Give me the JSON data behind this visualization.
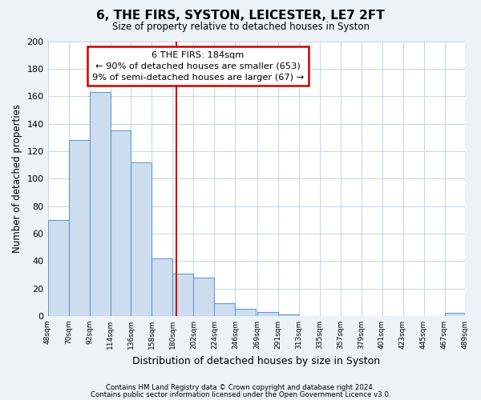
{
  "title": "6, THE FIRS, SYSTON, LEICESTER, LE7 2FT",
  "subtitle": "Size of property relative to detached houses in Syston",
  "xlabel": "Distribution of detached houses by size in Syston",
  "ylabel": "Number of detached properties",
  "bar_color": "#ccddf0",
  "bar_edge_color": "#6699cc",
  "bins": [
    48,
    70,
    92,
    114,
    136,
    158,
    180,
    202,
    224,
    246,
    269,
    291,
    313,
    335,
    357,
    379,
    401,
    423,
    445,
    467,
    489
  ],
  "heights": [
    70,
    128,
    163,
    135,
    112,
    42,
    31,
    28,
    9,
    5,
    3,
    1,
    0,
    0,
    0,
    0,
    0,
    0,
    0,
    2
  ],
  "tick_labels": [
    "48sqm",
    "70sqm",
    "92sqm",
    "114sqm",
    "136sqm",
    "158sqm",
    "180sqm",
    "202sqm",
    "224sqm",
    "246sqm",
    "269sqm",
    "291sqm",
    "313sqm",
    "335sqm",
    "357sqm",
    "379sqm",
    "401sqm",
    "423sqm",
    "445sqm",
    "467sqm",
    "489sqm"
  ],
  "vline_x": 184,
  "vline_color": "#cc0000",
  "ann_line1": "6 THE FIRS: 184sqm",
  "ann_line2": "← 90% of detached houses are smaller (653)",
  "ann_line3": "9% of semi-detached houses are larger (67) →",
  "annotation_box_color": "#ffffff",
  "annotation_edge_color": "#cc0000",
  "ylim": [
    0,
    200
  ],
  "yticks": [
    0,
    20,
    40,
    60,
    80,
    100,
    120,
    140,
    160,
    180,
    200
  ],
  "footer1": "Contains HM Land Registry data © Crown copyright and database right 2024.",
  "footer2": "Contains public sector information licensed under the Open Government Licence v3.0.",
  "bg_color": "#edf2f7",
  "plot_bg_color": "#ffffff",
  "grid_color": "#c5d5e5"
}
